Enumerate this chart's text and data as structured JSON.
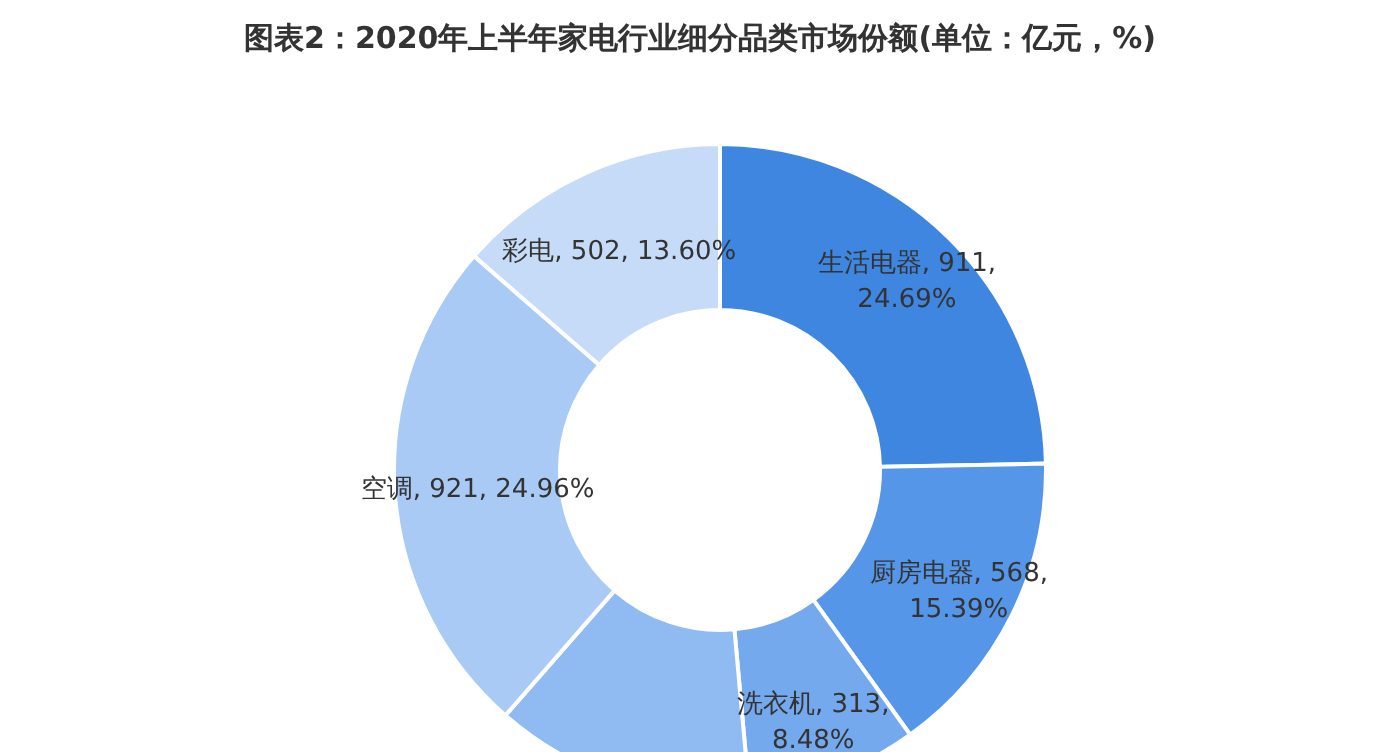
{
  "chart_data": {
    "type": "donut",
    "title": "图表2：2020年上半年家电行业细分品类市场份额(单位：亿元，%)",
    "categories": [
      "生活电器",
      "厨房电器",
      "洗衣机",
      null,
      "空调",
      "彩电"
    ],
    "values": [
      911,
      568,
      313,
      475,
      921,
      502
    ],
    "value_labels": [
      "911, 24.69%",
      "568, 15.39%",
      "313, 8.48%",
      null,
      "921, 24.96%",
      "502, 13.60%"
    ],
    "colors": [
      "#3f86e0",
      "#5596e8",
      "#74a9ee",
      "#8fbaf2",
      "#a9caf5",
      "#c6dbf8"
    ],
    "legend": false
  }
}
